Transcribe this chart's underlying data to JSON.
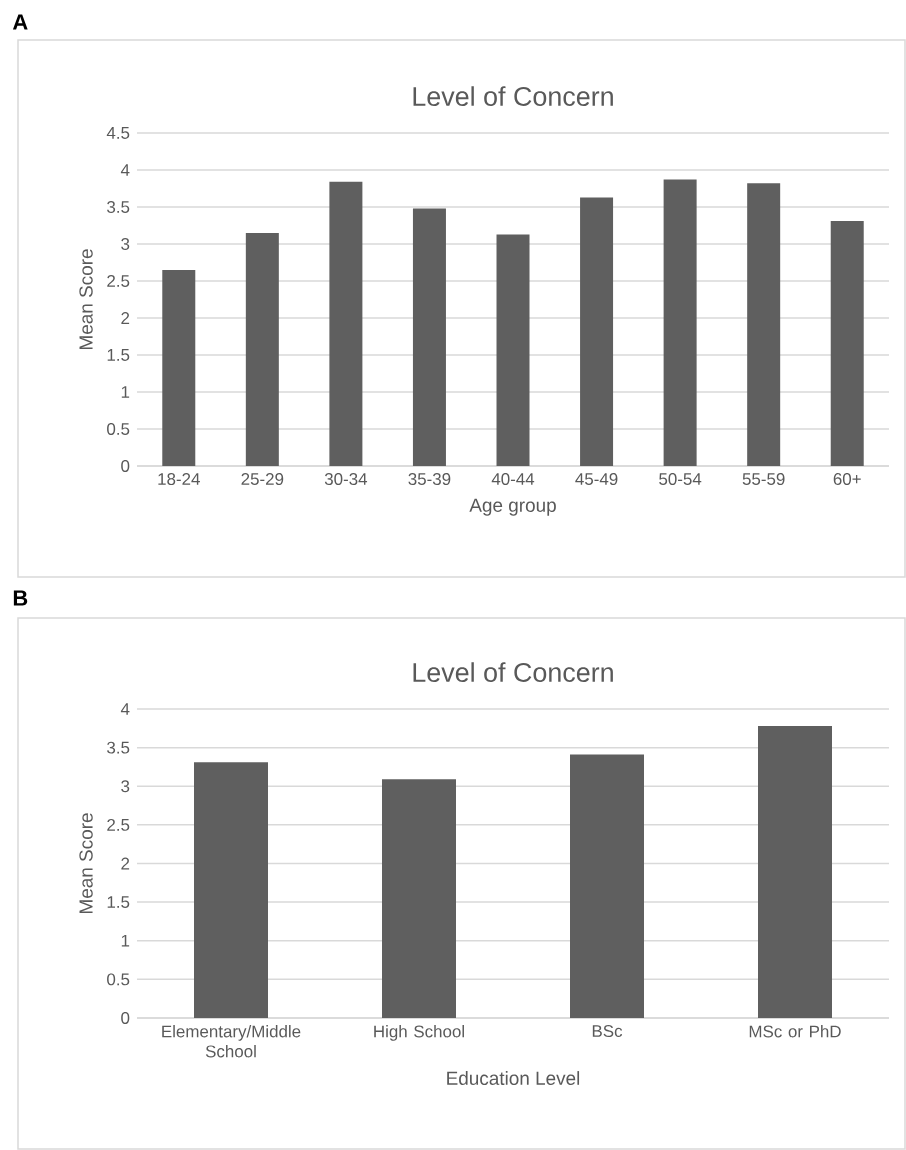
{
  "chart_data": [
    {
      "type": "bar",
      "title": "Level of Concern",
      "xlabel": "Age group",
      "ylabel": "Mean Score",
      "annotations": [
        "A"
      ],
      "categories": [
        "18-24",
        "25-29",
        "30-34",
        "35-39",
        "40-44",
        "45-49",
        "50-54",
        "55-59",
        "60+"
      ],
      "values": [
        2.65,
        3.15,
        3.84,
        3.48,
        3.13,
        3.63,
        3.87,
        3.82,
        3.31
      ],
      "color": "#5f5f5f",
      "ylim": [
        0,
        4.5
      ],
      "yticks": [
        0,
        0.5,
        1,
        1.5,
        2,
        2.5,
        3,
        3.5,
        4,
        4.5
      ],
      "grid": "y"
    },
    {
      "type": "bar",
      "title": "Level of Concern",
      "xlabel": "Education Level",
      "ylabel": "Mean Score",
      "annotations": [
        "B"
      ],
      "categories": [
        "Elementary/Middle School",
        "High School",
        "BSc",
        "MSc or PhD"
      ],
      "values": [
        3.31,
        3.09,
        3.41,
        3.78
      ],
      "color": "#5f5f5f",
      "ylim": [
        0,
        4
      ],
      "yticks": [
        0,
        0.5,
        1,
        1.5,
        2,
        2.5,
        3,
        3.5,
        4
      ],
      "grid": "y"
    }
  ]
}
